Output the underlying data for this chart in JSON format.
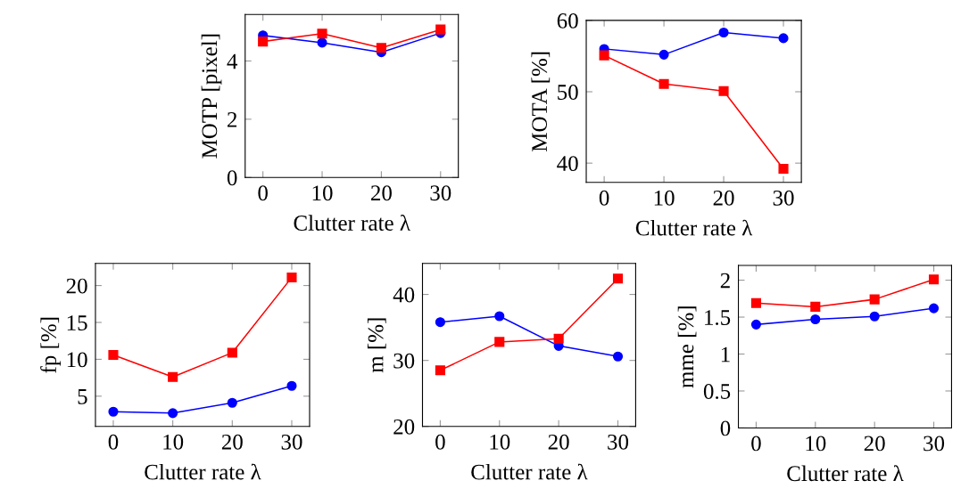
{
  "chart_data": [
    {
      "type": "line",
      "xlabel": "Clutter rate λ",
      "ylabel": "MOTP [pixel]",
      "x": [
        0,
        10,
        20,
        30
      ],
      "xlim": [
        -3,
        33
      ],
      "xticks": [
        0,
        10,
        20,
        30
      ],
      "ylim": [
        0,
        5.6
      ],
      "yticks": [
        0,
        2,
        4
      ],
      "grid": false,
      "legend": false,
      "series": [
        {
          "color": "#0000ff",
          "marker": "circle",
          "values": [
            4.88,
            4.63,
            4.3,
            4.96
          ]
        },
        {
          "color": "#ff0000",
          "marker": "square",
          "values": [
            4.67,
            4.94,
            4.45,
            5.08
          ]
        }
      ]
    },
    {
      "type": "line",
      "xlabel": "Clutter rate λ",
      "ylabel": "MOTA [%]",
      "x": [
        0,
        10,
        20,
        30
      ],
      "xlim": [
        -3,
        33
      ],
      "xticks": [
        0,
        10,
        20,
        30
      ],
      "ylim": [
        37.3,
        60
      ],
      "yticks": [
        40,
        50,
        60
      ],
      "grid": false,
      "legend": false,
      "series": [
        {
          "color": "#0000ff",
          "marker": "circle",
          "values": [
            56.0,
            55.2,
            58.3,
            57.5
          ]
        },
        {
          "color": "#ff0000",
          "marker": "square",
          "values": [
            55.1,
            51.1,
            50.1,
            39.2
          ]
        }
      ]
    },
    {
      "type": "line",
      "xlabel": "Clutter rate λ",
      "ylabel": "fp [%]",
      "x": [
        0,
        10,
        20,
        30
      ],
      "xlim": [
        -3,
        33
      ],
      "xticks": [
        0,
        10,
        20,
        30
      ],
      "ylim": [
        0.9,
        23
      ],
      "yticks": [
        5,
        10,
        15,
        20
      ],
      "grid": false,
      "legend": false,
      "series": [
        {
          "color": "#0000ff",
          "marker": "circle",
          "values": [
            2.9,
            2.7,
            4.1,
            6.4
          ]
        },
        {
          "color": "#ff0000",
          "marker": "square",
          "values": [
            10.6,
            7.6,
            10.9,
            21.1
          ]
        }
      ]
    },
    {
      "type": "line",
      "xlabel": "Clutter rate λ",
      "ylabel": "m [%]",
      "x": [
        0,
        10,
        20,
        30
      ],
      "xlim": [
        -3,
        33
      ],
      "xticks": [
        0,
        10,
        20,
        30
      ],
      "ylim": [
        20,
        44.7
      ],
      "yticks": [
        20,
        30,
        40
      ],
      "grid": false,
      "legend": false,
      "series": [
        {
          "color": "#0000ff",
          "marker": "circle",
          "values": [
            35.8,
            36.7,
            32.2,
            30.6
          ]
        },
        {
          "color": "#ff0000",
          "marker": "square",
          "values": [
            28.5,
            32.8,
            33.3,
            42.4
          ]
        }
      ]
    },
    {
      "type": "line",
      "xlabel": "Clutter rate λ",
      "ylabel": "mme [%]",
      "x": [
        0,
        10,
        20,
        30
      ],
      "xlim": [
        -3,
        33
      ],
      "xticks": [
        0,
        10,
        20,
        30
      ],
      "ylim": [
        0,
        2.2
      ],
      "yticks": [
        0,
        0.5,
        1,
        1.5,
        2
      ],
      "grid": false,
      "legend": false,
      "series": [
        {
          "color": "#0000ff",
          "marker": "circle",
          "values": [
            1.4,
            1.47,
            1.51,
            1.62
          ]
        },
        {
          "color": "#ff0000",
          "marker": "square",
          "values": [
            1.69,
            1.64,
            1.74,
            2.01
          ]
        }
      ]
    }
  ]
}
